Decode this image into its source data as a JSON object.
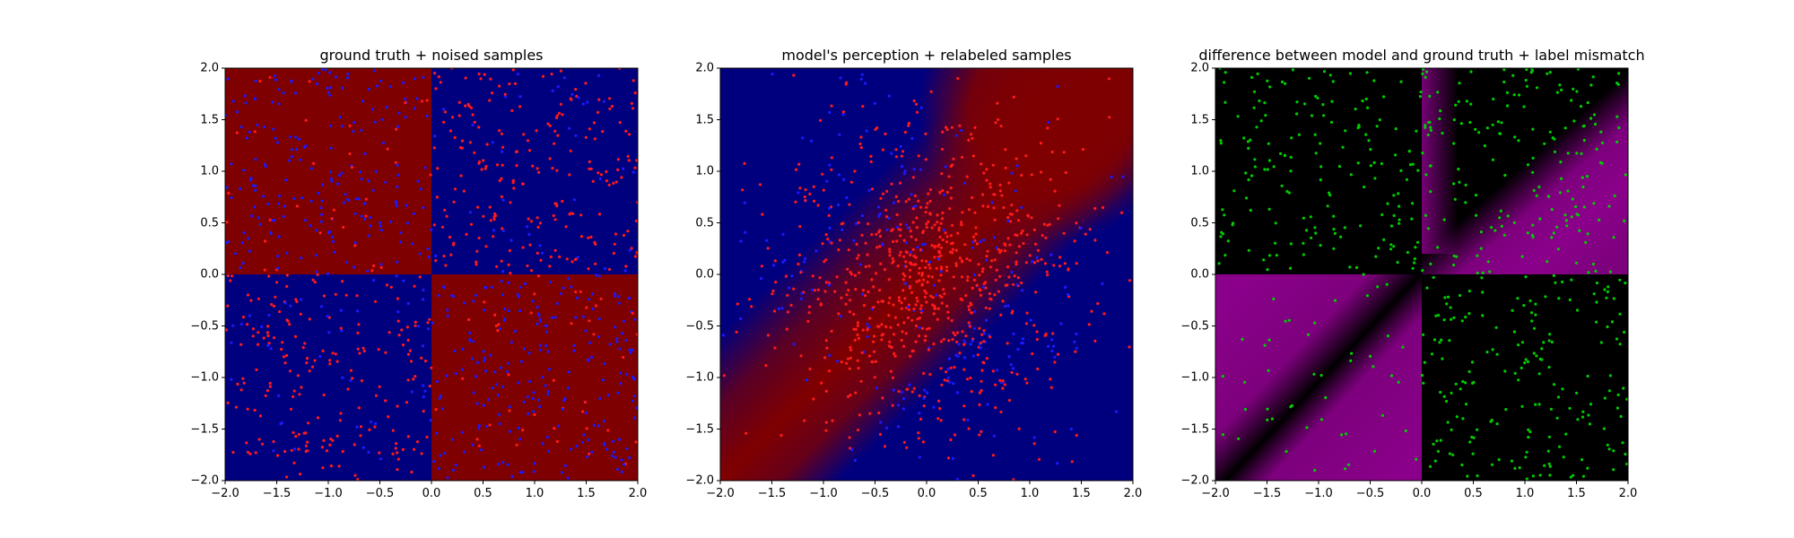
{
  "figure": {
    "layout": "three panels side by side"
  },
  "chart_data": [
    {
      "type": "heatmap",
      "title": "ground truth + noised samples",
      "xlim": [
        -2.0,
        2.0
      ],
      "ylim": [
        -2.0,
        2.0
      ],
      "xticks": [
        "−2.0",
        "−1.5",
        "−1.0",
        "−0.5",
        "0.0",
        "0.5",
        "1.0",
        "1.5",
        "2.0"
      ],
      "yticks": [
        "−2.0",
        "−1.5",
        "−1.0",
        "−0.5",
        "0.0",
        "0.5",
        "1.0",
        "1.5",
        "2.0"
      ],
      "colors": {
        "positive": "#7f0000",
        "negative": "#00007f"
      },
      "regions": [
        {
          "quadrant": "top-left",
          "class": "red"
        },
        {
          "quadrant": "top-right",
          "class": "blue"
        },
        {
          "quadrant": "bottom-left",
          "class": "blue"
        },
        {
          "quadrant": "bottom-right",
          "class": "red"
        }
      ],
      "scatter": {
        "approx_count": 1000,
        "marker_size": "small",
        "point_colors": {
          "red": "#ff1a1a",
          "blue": "#1a1aff"
        },
        "distribution": "uniform over [-2,2]x[-2,2]",
        "labeling": "XOR ground truth: x*y<0 red, x*y>0 blue (each point shown in opposite-of-background color), a fraction randomly flipped"
      }
    },
    {
      "type": "heatmap",
      "title": "model's perception + relabeled samples",
      "xlim": [
        -2.0,
        2.0
      ],
      "ylim": [
        -2.0,
        2.0
      ],
      "xticks": [
        "−2.0",
        "−1.5",
        "−1.0",
        "−0.5",
        "0.0",
        "0.5",
        "1.0",
        "1.5",
        "2.0"
      ],
      "yticks": [
        "−2.0",
        "−1.5",
        "−1.0",
        "−0.5",
        "0.0",
        "0.5",
        "1.0",
        "1.5",
        "2.0"
      ],
      "colors": {
        "positive": "#7f0000",
        "negative": "#00007f"
      },
      "description": "smooth gradient; red band along diagonal from bottom-left to top-right, blue elsewhere",
      "scatter": {
        "approx_count": 1000,
        "point_colors": {
          "red": "#ff1a1a",
          "blue": "#1a1aff"
        },
        "distribution": "gaussian centered near origin"
      }
    },
    {
      "type": "heatmap",
      "title": "difference between model and ground truth + label mismatch",
      "xlim": [
        -2.0,
        2.0
      ],
      "ylim": [
        -2.0,
        2.0
      ],
      "xticks": [
        "−2.0",
        "−1.5",
        "−1.0",
        "−0.5",
        "0.0",
        "0.5",
        "1.0",
        "1.5",
        "2.0"
      ],
      "yticks": [
        "−2.0",
        "−1.5",
        "−1.0",
        "−0.5",
        "0.0",
        "0.5",
        "1.0",
        "1.5",
        "2.0"
      ],
      "colors": {
        "match": "#000000",
        "mismatch": "#8b008b"
      },
      "description": "black where model agrees, magenta where it disagrees (bottom-left quadrant and diagonal band in top-right)",
      "scatter": {
        "approx_count": 700,
        "point_color": "#00cc00",
        "distribution": "uniform over [-2,2]x[-2,2]"
      }
    }
  ]
}
